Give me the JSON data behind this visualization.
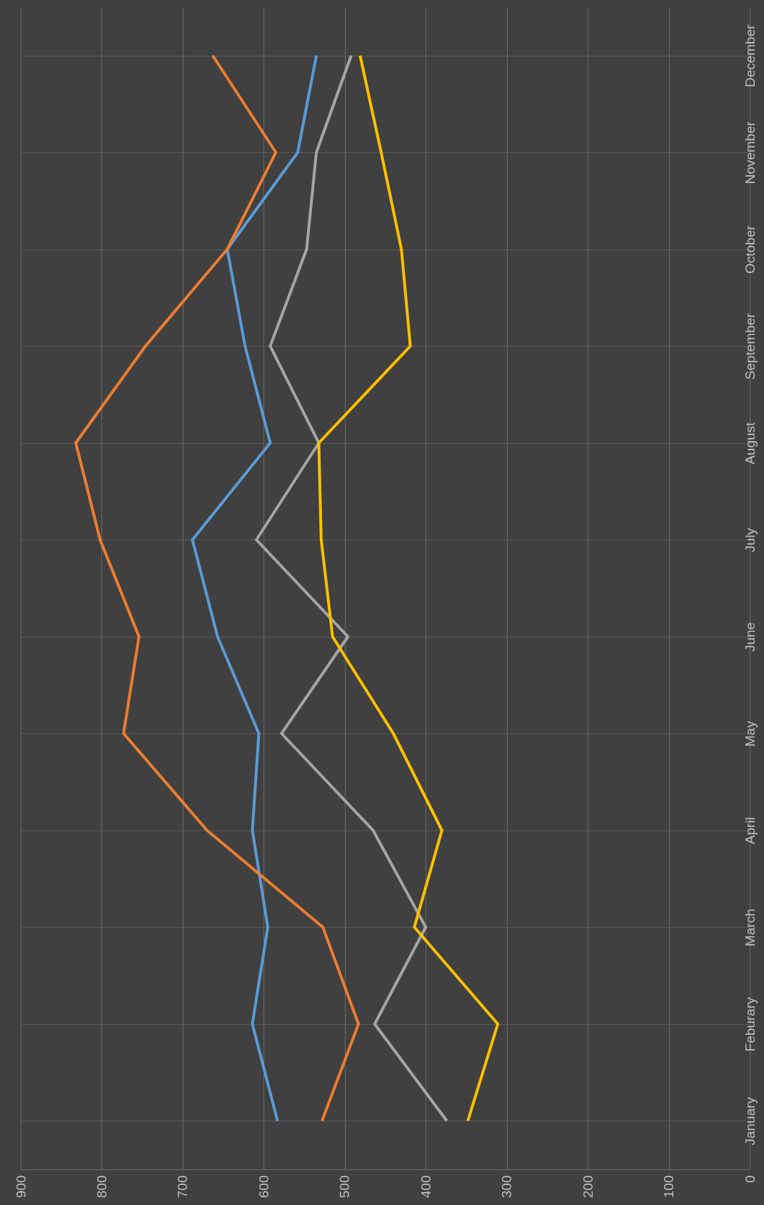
{
  "chart_data": {
    "type": "line",
    "orientation": "horizontal",
    "categories": [
      "December",
      "November",
      "October",
      "September",
      "August",
      "July",
      "June",
      "May",
      "April",
      "March",
      "Feburary",
      "January"
    ],
    "series": [
      {
        "color": "#5b9bd5",
        "values": [
          535,
          558,
          645,
          623,
          592,
          688,
          657,
          606,
          614,
          595,
          614,
          583
        ]
      },
      {
        "color": "#ed7d31",
        "values": [
          663,
          585,
          645,
          746,
          832,
          802,
          754,
          773,
          670,
          527,
          483,
          528
        ]
      },
      {
        "color": "#a5a5a5",
        "values": [
          492,
          535,
          547,
          592,
          532,
          609,
          496,
          578,
          465,
          400,
          463,
          374
        ]
      },
      {
        "color": "#ffc000",
        "values": [
          481,
          455,
          430,
          419,
          532,
          529,
          515,
          440,
          380,
          414,
          311,
          348
        ]
      }
    ],
    "xlim": [
      900,
      0
    ],
    "xticks": [
      0,
      100,
      200,
      300,
      400,
      500,
      600,
      700,
      800,
      900
    ],
    "grid": true,
    "legend": false,
    "marker": "none",
    "line_style": "solid"
  }
}
